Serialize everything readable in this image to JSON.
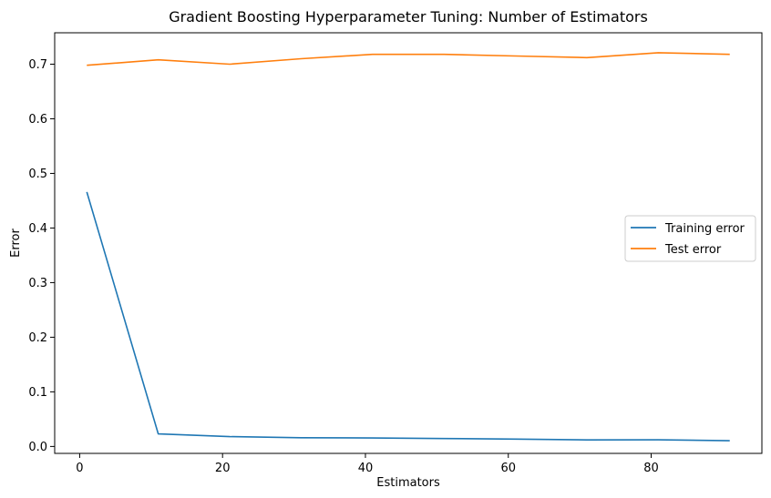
{
  "chart_data": {
    "type": "line",
    "title": "Gradient Boosting Hyperparameter Tuning: Number of Estimators",
    "xlabel": "Estimators",
    "ylabel": "Error",
    "x": [
      1,
      11,
      21,
      31,
      41,
      51,
      61,
      71,
      81,
      91
    ],
    "xlim": [
      -3.5,
      95.5
    ],
    "ylim": [
      -0.0127,
      0.7575
    ],
    "xticks": [
      0,
      20,
      40,
      60,
      80
    ],
    "yticks": [
      0.0,
      0.1,
      0.2,
      0.3,
      0.4,
      0.5,
      0.6,
      0.7
    ],
    "ytick_labels": [
      "0.0",
      "0.1",
      "0.2",
      "0.3",
      "0.4",
      "0.5",
      "0.6",
      "0.7"
    ],
    "grid": false,
    "legend_position": "center-right",
    "series": [
      {
        "name": "Training error",
        "color": "#1f77b4",
        "values": [
          0.466,
          0.023,
          0.018,
          0.016,
          0.0155,
          0.0145,
          0.0135,
          0.012,
          0.0122,
          0.0105
        ]
      },
      {
        "name": "Test error",
        "color": "#ff7f0e",
        "values": [
          0.698,
          0.708,
          0.7,
          0.71,
          0.718,
          0.718,
          0.715,
          0.712,
          0.721,
          0.718
        ]
      }
    ]
  }
}
